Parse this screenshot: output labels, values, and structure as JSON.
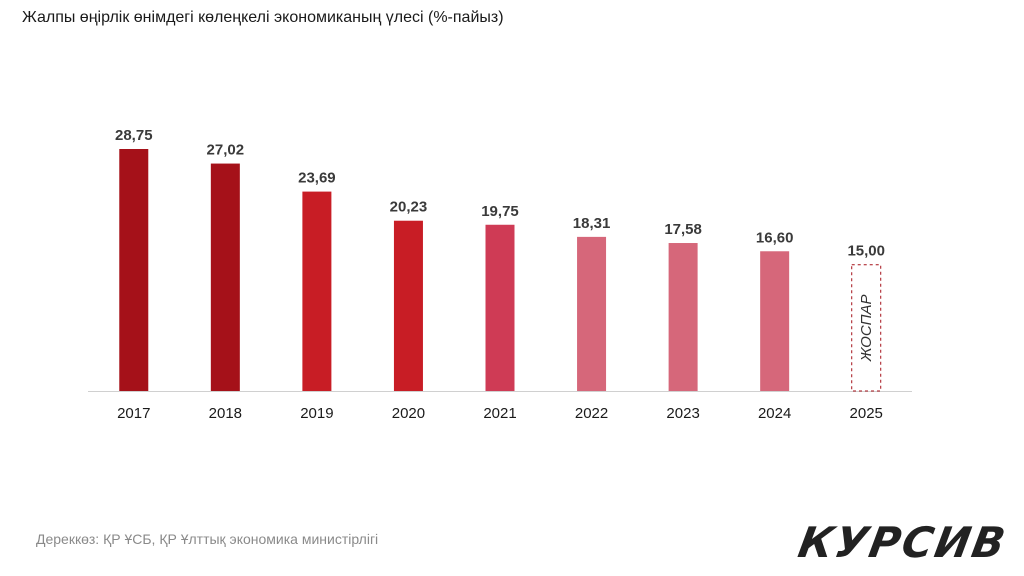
{
  "title": "Жалпы өңірлік өнімдегі көлеңкелі экономиканың үлесі (%-пайыз)",
  "source": "Дереккөз:  ҚР ҰСБ, ҚР Ұлттық экономика министірлігі",
  "logo": "КУРСИВ",
  "chart_data": {
    "type": "bar",
    "title": "Жалпы өңірлік өнімдегі көлеңкелі экономиканың үлесі (%-пайыз)",
    "xlabel": "",
    "ylabel": "",
    "ylim": [
      0,
      30
    ],
    "grid": false,
    "categories": [
      "2017",
      "2018",
      "2019",
      "2020",
      "2021",
      "2022",
      "2023",
      "2024",
      "2025"
    ],
    "values": [
      28.75,
      27.02,
      23.69,
      20.23,
      19.75,
      18.31,
      17.58,
      16.6,
      15.0
    ],
    "data_labels": [
      "28,75",
      "27,02",
      "23,69",
      "20,23",
      "19,75",
      "18,31",
      "17,58",
      "16,60",
      "15,00"
    ],
    "colors": [
      "#a51119",
      "#a51119",
      "#c81d25",
      "#c81d25",
      "#cf3b55",
      "#d6677a",
      "#d6677a",
      "#d6677a",
      "none"
    ],
    "planned_index": 8,
    "planned_label": "ЖОСПАР",
    "planned_outline_color": "#a51119"
  }
}
